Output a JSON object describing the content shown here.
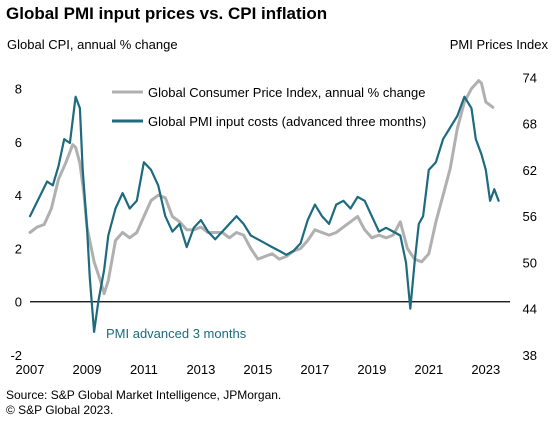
{
  "title": "Global PMI input prices vs. CPI inflation",
  "source_line1": "Source: S&P Global Market Intelligence, JPMorgan.",
  "source_line2": "© S&P Global 2023.",
  "chart_data": {
    "type": "line",
    "ylabel_left": "Global  CPI, annual % change",
    "ylabel_right": "PMI Prices Index",
    "ylim_left": [
      -2,
      9
    ],
    "ylim_right": [
      38,
      76
    ],
    "xlim": [
      2007,
      2023.85
    ],
    "left_ticks": [
      "-2",
      "0",
      "2",
      "4",
      "6",
      "8"
    ],
    "right_ticks": [
      "38",
      "44",
      "50",
      "56",
      "62",
      "68",
      "74"
    ],
    "x_ticks": [
      "2007",
      "2009",
      "2011",
      "2013",
      "2015",
      "2017",
      "2019",
      "2021",
      "2023"
    ],
    "zero_line": 0,
    "legend_position": "top-right",
    "annotation": "PMI advanced 3 months",
    "colors": {
      "cpi": "#b0b0b0",
      "pmi": "#1d6b7e"
    },
    "series": [
      {
        "name": "Global Consumer Price Index, annual % change",
        "axis": "left",
        "x": [
          2007.0,
          2007.25,
          2007.5,
          2007.75,
          2008.0,
          2008.25,
          2008.5,
          2008.6,
          2008.75,
          2008.9,
          2009.0,
          2009.25,
          2009.5,
          2009.6,
          2009.75,
          2010.0,
          2010.25,
          2010.5,
          2010.75,
          2011.0,
          2011.25,
          2011.5,
          2011.75,
          2012.0,
          2012.25,
          2012.5,
          2012.75,
          2013.0,
          2013.25,
          2013.5,
          2013.75,
          2014.0,
          2014.25,
          2014.5,
          2014.75,
          2015.0,
          2015.25,
          2015.5,
          2015.75,
          2016.0,
          2016.25,
          2016.5,
          2016.75,
          2017.0,
          2017.25,
          2017.5,
          2017.75,
          2018.0,
          2018.25,
          2018.5,
          2018.75,
          2019.0,
          2019.25,
          2019.5,
          2019.75,
          2020.0,
          2020.25,
          2020.5,
          2020.75,
          2021.0,
          2021.25,
          2021.5,
          2021.75,
          2022.0,
          2022.25,
          2022.5,
          2022.75,
          2022.85,
          2023.0,
          2023.25
        ],
        "values": [
          2.6,
          2.8,
          2.9,
          3.5,
          4.6,
          5.2,
          5.9,
          5.8,
          5.2,
          4.0,
          2.8,
          1.5,
          0.7,
          0.3,
          0.8,
          2.3,
          2.6,
          2.4,
          2.6,
          3.2,
          3.8,
          4.0,
          3.9,
          3.2,
          3.0,
          2.7,
          2.7,
          2.8,
          2.6,
          2.6,
          2.6,
          2.4,
          2.6,
          2.5,
          2.0,
          1.6,
          1.7,
          1.8,
          1.6,
          1.7,
          1.9,
          2.0,
          2.3,
          2.7,
          2.6,
          2.5,
          2.6,
          2.8,
          3.0,
          3.2,
          2.7,
          2.4,
          2.5,
          2.4,
          2.5,
          3.0,
          2.0,
          1.6,
          1.5,
          1.8,
          3.0,
          4.0,
          5.0,
          6.5,
          7.5,
          8.0,
          8.3,
          8.2,
          7.5,
          7.3
        ]
      },
      {
        "name": "Global PMI input costs (advanced three months)",
        "axis": "right",
        "x": [
          2007.0,
          2007.2,
          2007.4,
          2007.6,
          2007.8,
          2008.0,
          2008.2,
          2008.4,
          2008.6,
          2008.75,
          2008.85,
          2009.0,
          2009.1,
          2009.25,
          2009.4,
          2009.6,
          2009.75,
          2010.0,
          2010.25,
          2010.5,
          2010.75,
          2011.0,
          2011.25,
          2011.5,
          2011.75,
          2012.0,
          2012.25,
          2012.5,
          2012.75,
          2013.0,
          2013.25,
          2013.5,
          2013.75,
          2014.0,
          2014.25,
          2014.5,
          2014.75,
          2015.0,
          2015.25,
          2015.5,
          2015.75,
          2016.0,
          2016.25,
          2016.5,
          2016.75,
          2017.0,
          2017.25,
          2017.5,
          2017.75,
          2018.0,
          2018.25,
          2018.5,
          2018.75,
          2019.0,
          2019.25,
          2019.5,
          2019.75,
          2020.0,
          2020.2,
          2020.35,
          2020.5,
          2020.65,
          2020.8,
          2021.0,
          2021.25,
          2021.5,
          2021.75,
          2022.0,
          2022.25,
          2022.5,
          2022.65,
          2022.85,
          2023.0,
          2023.15,
          2023.3,
          2023.45
        ],
        "values": [
          56.0,
          57.5,
          59.0,
          60.5,
          60.0,
          62.5,
          66.0,
          65.5,
          71.5,
          70.0,
          62.0,
          54.5,
          48.0,
          41.0,
          45.0,
          49.0,
          53.5,
          57.0,
          59.0,
          57.0,
          58.0,
          63.0,
          62.0,
          60.0,
          56.0,
          54.0,
          55.0,
          52.0,
          54.5,
          55.5,
          54.0,
          53.0,
          54.0,
          55.0,
          56.0,
          55.0,
          53.5,
          53.0,
          52.5,
          52.0,
          51.5,
          51.0,
          51.5,
          52.5,
          55.5,
          57.5,
          56.0,
          55.0,
          57.5,
          58.0,
          57.0,
          58.5,
          58.0,
          56.0,
          54.0,
          54.5,
          54.0,
          53.5,
          50.0,
          44.0,
          50.0,
          55.0,
          56.0,
          62.0,
          63.0,
          66.0,
          67.5,
          69.0,
          71.5,
          70.0,
          66.0,
          64.0,
          62.0,
          58.0,
          59.5,
          58.0
        ]
      }
    ]
  }
}
